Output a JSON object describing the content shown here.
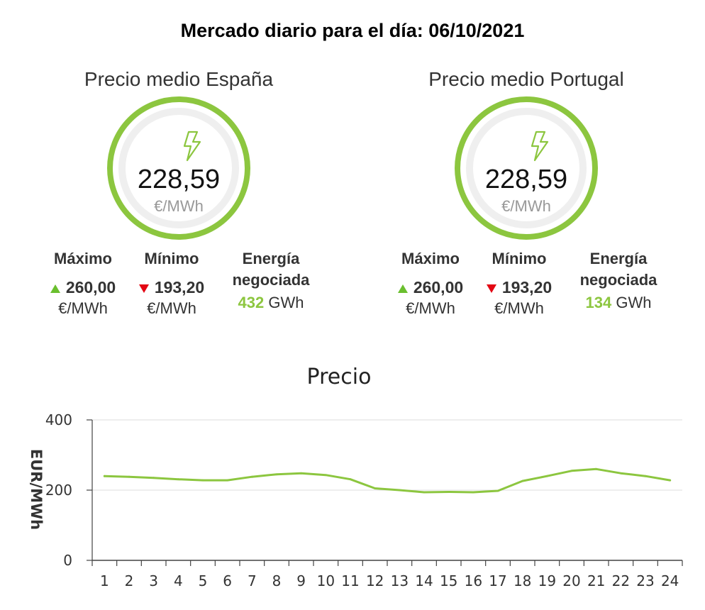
{
  "title": "Mercado diario para el día: 06/10/2021",
  "accent_color": "#8cc63f",
  "up_color": "#6abf2e",
  "down_color": "#e30613",
  "spain": {
    "heading": "Precio medio España",
    "icon": "lightning-bolt-icon",
    "price": "228,59",
    "unit": "€/MWh",
    "max_label": "Máximo",
    "max_value": "260,00",
    "max_unit": "€/MWh",
    "min_label": "Mínimo",
    "min_value": "193,20",
    "min_unit": "€/MWh",
    "energy_label_1": "Energía",
    "energy_label_2": "negociada",
    "energy_value": "432",
    "energy_unit": "GWh"
  },
  "portugal": {
    "heading": "Precio medio Portugal",
    "icon": "lightning-bolt-icon",
    "price": "228,59",
    "unit": "€/MWh",
    "max_label": "Máximo",
    "max_value": "260,00",
    "max_unit": "€/MWh",
    "min_label": "Mínimo",
    "min_value": "193,20",
    "min_unit": "€/MWh",
    "energy_label_1": "Energía",
    "energy_label_2": "negociada",
    "energy_value": "134",
    "energy_unit": "GWh"
  },
  "chart_data": {
    "type": "line",
    "title": "Precio",
    "xlabel": "",
    "ylabel": "EUR/MWh",
    "x": [
      1,
      2,
      3,
      4,
      5,
      6,
      7,
      8,
      9,
      10,
      11,
      12,
      13,
      14,
      15,
      16,
      17,
      18,
      19,
      20,
      21,
      22,
      23,
      24
    ],
    "series": [
      {
        "color": "#8cc63f",
        "values": [
          240,
          238,
          235,
          231,
          228,
          228,
          238,
          245,
          248,
          243,
          231,
          205,
          200,
          194,
          195,
          194,
          198,
          226,
          240,
          255,
          260,
          248,
          240,
          228
        ]
      }
    ],
    "ylim": [
      0,
      400
    ],
    "yticks": [
      0,
      200,
      400
    ],
    "grid": true
  }
}
